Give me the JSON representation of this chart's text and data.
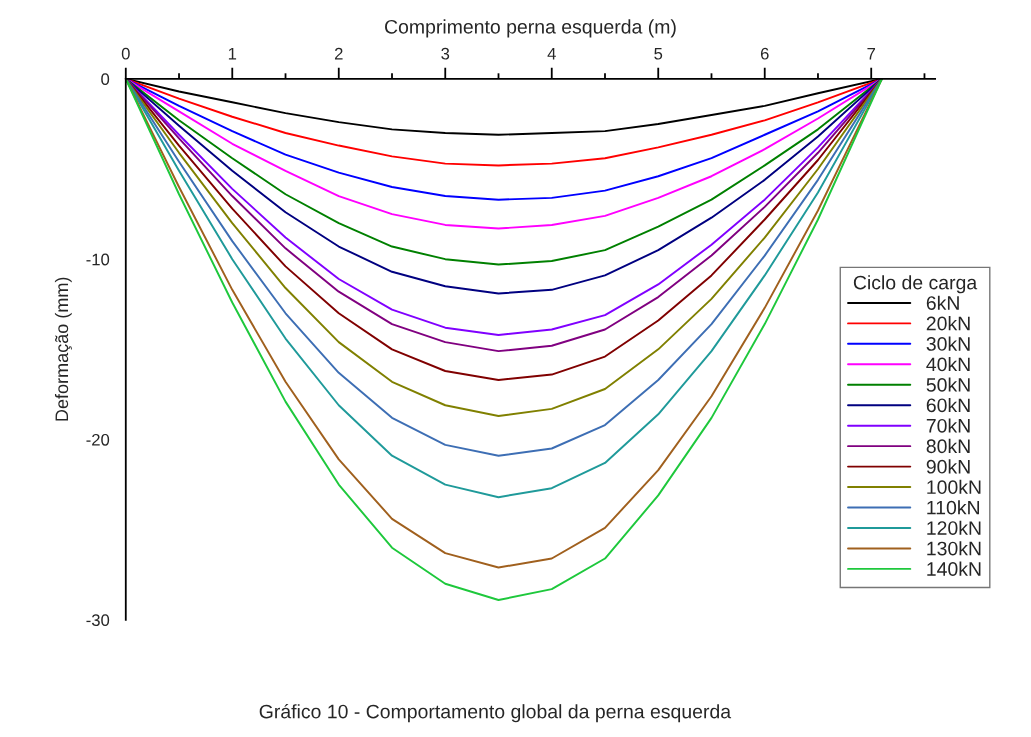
{
  "chart_data": {
    "type": "line",
    "xlabel": "Comprimento perna esquerda (m)",
    "ylabel": "Deformação (mm)",
    "legend_title": "Ciclo de carga",
    "legend": "right",
    "grid": false,
    "marker": "none",
    "line_style": "solid",
    "x": [
      0,
      0.5,
      1,
      1.5,
      2,
      2.5,
      3,
      3.5,
      4,
      4.5,
      5,
      5.5,
      6,
      6.5,
      7.1
    ],
    "xlim": [
      0,
      7.6
    ],
    "xticks": [
      0,
      1,
      2,
      3,
      4,
      5,
      6,
      7
    ],
    "ylim": [
      -30,
      0
    ],
    "yticks": [
      {
        "value": 0,
        "label": "0"
      },
      {
        "value": -10,
        "label": "-10"
      },
      {
        "value": -20,
        "label": "-20"
      },
      {
        "value": -30,
        "label": "-30"
      }
    ],
    "annotations": [
      "Gráfico 10 - Comportamento global da perna esquerda"
    ],
    "series": [
      {
        "name": "6kN",
        "color": "#000000",
        "values": [
          0,
          -0.7,
          -1.3,
          -1.9,
          -2.4,
          -2.8,
          -3.0,
          -3.1,
          -3.0,
          -2.9,
          -2.5,
          -2.0,
          -1.5,
          -0.8,
          0
        ]
      },
      {
        "name": "20kN",
        "color": "#ff0000",
        "values": [
          0,
          -1.1,
          -2.1,
          -3.0,
          -3.7,
          -4.3,
          -4.7,
          -4.8,
          -4.7,
          -4.4,
          -3.8,
          -3.1,
          -2.3,
          -1.3,
          0
        ]
      },
      {
        "name": "30kN",
        "color": "#0000ff",
        "values": [
          0,
          -1.5,
          -2.9,
          -4.2,
          -5.2,
          -6.0,
          -6.5,
          -6.7,
          -6.6,
          -6.2,
          -5.4,
          -4.4,
          -3.1,
          -1.8,
          0
        ]
      },
      {
        "name": "40kN",
        "color": "#ff00ff",
        "values": [
          0,
          -1.8,
          -3.6,
          -5.1,
          -6.5,
          -7.5,
          -8.1,
          -8.3,
          -8.1,
          -7.6,
          -6.6,
          -5.4,
          -3.9,
          -2.2,
          0
        ]
      },
      {
        "name": "50kN",
        "color": "#008000",
        "values": [
          0,
          -2.3,
          -4.4,
          -6.4,
          -8.0,
          -9.3,
          -10.0,
          -10.3,
          -10.1,
          -9.5,
          -8.2,
          -6.7,
          -4.8,
          -2.8,
          0
        ]
      },
      {
        "name": "60kN",
        "color": "#000080",
        "values": [
          0,
          -2.6,
          -5.1,
          -7.4,
          -9.3,
          -10.7,
          -11.5,
          -11.9,
          -11.7,
          -10.9,
          -9.5,
          -7.7,
          -5.6,
          -3.2,
          0
        ]
      },
      {
        "name": "70kN",
        "color": "#8000ff",
        "values": [
          0,
          -3.1,
          -6.1,
          -8.8,
          -11.1,
          -12.8,
          -13.8,
          -14.2,
          -13.9,
          -13.1,
          -11.4,
          -9.2,
          -6.7,
          -3.8,
          0
        ]
      },
      {
        "name": "80kN",
        "color": "#800080",
        "values": [
          0,
          -3.3,
          -6.5,
          -9.4,
          -11.8,
          -13.6,
          -14.6,
          -15.1,
          -14.8,
          -13.9,
          -12.1,
          -9.8,
          -7.1,
          -4.1,
          0
        ]
      },
      {
        "name": "90kN",
        "color": "#800000",
        "values": [
          0,
          -3.7,
          -7.2,
          -10.4,
          -13.0,
          -15.0,
          -16.2,
          -16.7,
          -16.4,
          -15.4,
          -13.4,
          -10.9,
          -7.8,
          -4.5,
          0
        ]
      },
      {
        "name": "100kN",
        "color": "#808000",
        "values": [
          0,
          -4.1,
          -8.0,
          -11.6,
          -14.6,
          -16.8,
          -18.1,
          -18.7,
          -18.3,
          -17.2,
          -15.0,
          -12.2,
          -8.8,
          -5.0,
          0
        ]
      },
      {
        "name": "110kN",
        "color": "#3d6eb4",
        "values": [
          0,
          -4.6,
          -9.0,
          -13.0,
          -16.3,
          -18.8,
          -20.3,
          -20.9,
          -20.5,
          -19.2,
          -16.7,
          -13.6,
          -9.8,
          -5.6,
          0
        ]
      },
      {
        "name": "120kN",
        "color": "#1f9a9a",
        "values": [
          0,
          -5.1,
          -10.0,
          -14.4,
          -18.1,
          -20.9,
          -22.5,
          -23.2,
          -22.7,
          -21.3,
          -18.6,
          -15.1,
          -10.9,
          -6.3,
          0
        ]
      },
      {
        "name": "130kN",
        "color": "#a0601e",
        "values": [
          0,
          -6.0,
          -11.7,
          -16.8,
          -21.1,
          -24.4,
          -26.3,
          -27.1,
          -26.6,
          -24.9,
          -21.7,
          -17.6,
          -12.7,
          -7.3,
          0
        ]
      },
      {
        "name": "140kN",
        "color": "#1ec83c",
        "values": [
          0,
          -6.4,
          -12.4,
          -17.9,
          -22.5,
          -26.0,
          -28.0,
          -28.9,
          -28.3,
          -26.6,
          -23.1,
          -18.8,
          -13.6,
          -7.8,
          0
        ]
      }
    ]
  }
}
